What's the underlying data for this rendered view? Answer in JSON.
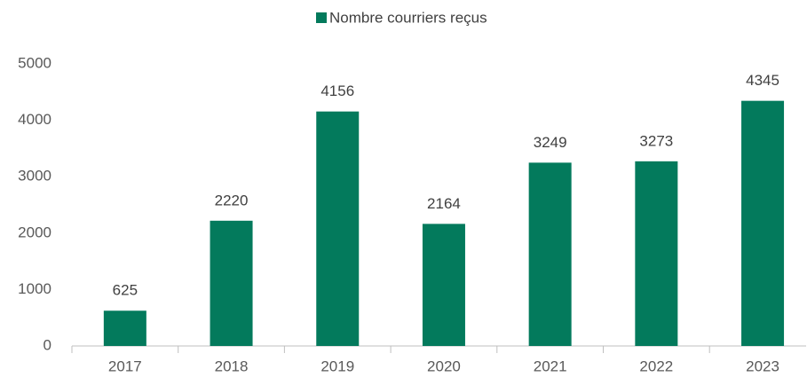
{
  "chart_data": {
    "type": "bar",
    "categories": [
      "2017",
      "2018",
      "2019",
      "2020",
      "2021",
      "2022",
      "2023"
    ],
    "series": [
      {
        "name": "Nombre courriers reçus",
        "color": "#037a5c",
        "values": [
          625,
          2220,
          4156,
          2164,
          3249,
          3273,
          4345
        ]
      }
    ],
    "ylim": [
      0,
      5000
    ],
    "yticks": [
      0,
      1000,
      2000,
      3000,
      4000,
      5000
    ],
    "grid": false,
    "legend": "top"
  }
}
